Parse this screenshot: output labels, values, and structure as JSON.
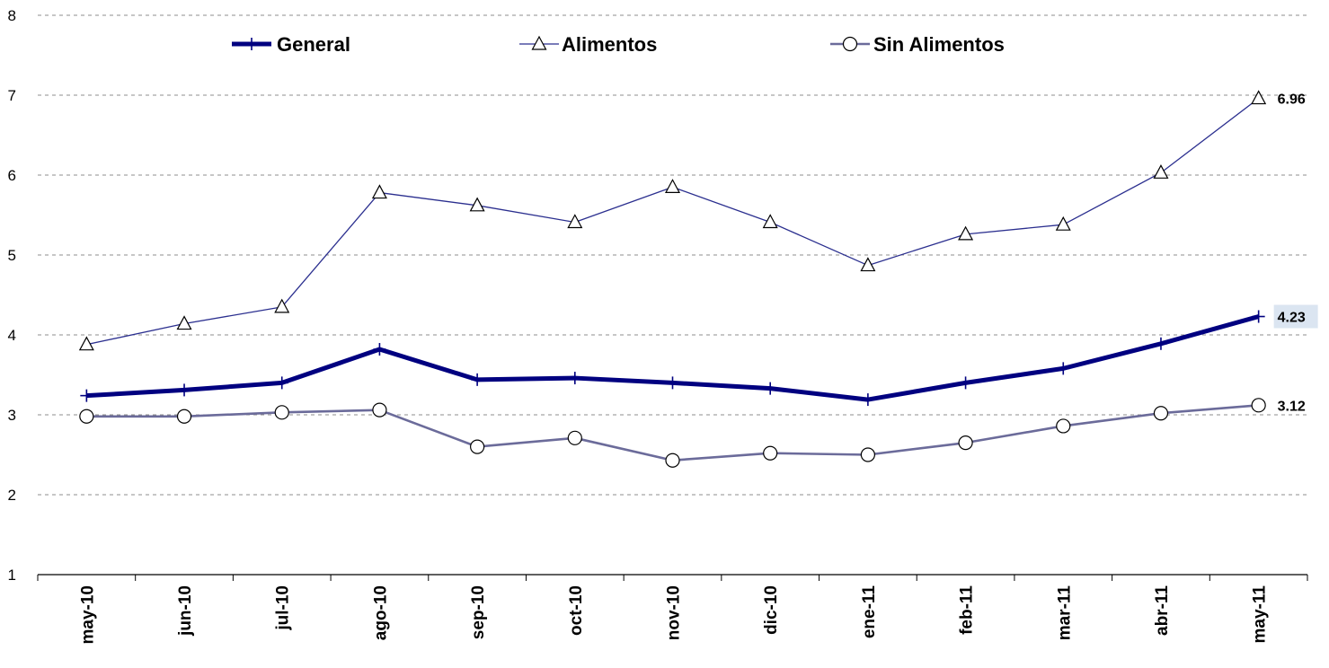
{
  "chart_data": {
    "type": "line",
    "title": "",
    "xlabel": "",
    "ylabel": "",
    "ylim": [
      1,
      8
    ],
    "yticks": [
      1,
      2,
      3,
      4,
      5,
      6,
      7,
      8
    ],
    "grid": "horizontal dashed",
    "legend_position": "top",
    "categories": [
      "may-10",
      "jun-10",
      "jul-10",
      "ago-10",
      "sep-10",
      "oct-10",
      "nov-10",
      "dic-10",
      "ene-11",
      "feb-11",
      "mar-11",
      "abr-11",
      "may-11"
    ],
    "series": [
      {
        "name": "General",
        "values": [
          3.24,
          3.31,
          3.4,
          3.82,
          3.44,
          3.46,
          3.4,
          3.33,
          3.19,
          3.4,
          3.58,
          3.89,
          4.23
        ],
        "color": "#000080",
        "marker": "plus",
        "end_label": "4.23",
        "end_label_highlight": "#dbe5f1"
      },
      {
        "name": "Alimentos",
        "values": [
          3.88,
          4.14,
          4.35,
          5.78,
          5.62,
          5.41,
          5.85,
          5.41,
          4.87,
          5.26,
          5.38,
          6.03,
          6.96
        ],
        "color": "#2b2f8f",
        "marker": "triangle",
        "end_label": "6.96"
      },
      {
        "name": "Sin Alimentos",
        "values": [
          2.98,
          2.98,
          3.03,
          3.06,
          2.6,
          2.71,
          2.43,
          2.52,
          2.5,
          2.65,
          2.86,
          3.02,
          3.12
        ],
        "color": "#6b6b9a",
        "marker": "circle",
        "end_label": "3.12"
      }
    ]
  }
}
